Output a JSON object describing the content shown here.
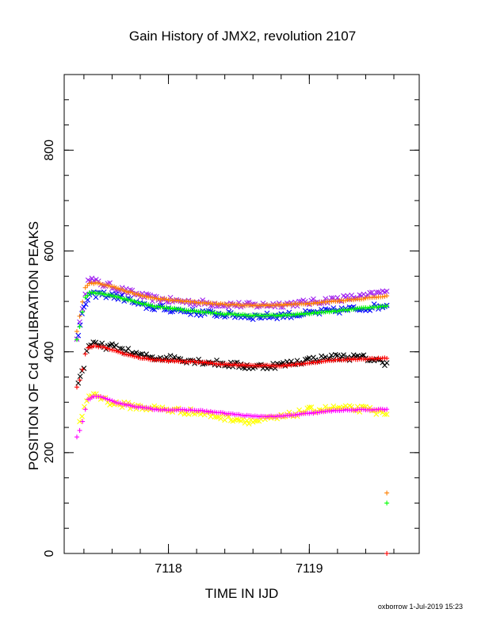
{
  "title": "Gain History of JMX2, revolution 2107",
  "footer": "oxborrow  1-Jul-2019 15:23",
  "colors": {
    "orange": "#ff7f00",
    "purple": "#a020f0",
    "green": "#00ff00",
    "blue": "#0000ff",
    "red": "#ff0000",
    "black": "#000000",
    "magenta": "#ff00ff",
    "yellow": "#ffff00"
  },
  "chart_data": {
    "type": "scatter",
    "title": "Gain History of JMX2, revolution 2107",
    "xlabel": "TIME IN IJD",
    "ylabel": "POSITION OF Cd CALIBRATION PEAKS",
    "xlim": [
      7117.26,
      7119.78
    ],
    "ylim": [
      0,
      950
    ],
    "x_ticks": [
      7118,
      7119
    ],
    "y_ticks": [
      0,
      200,
      400,
      600,
      800
    ],
    "grid": false,
    "legend": "none",
    "marker": "+/x",
    "series": [
      {
        "color": "purple",
        "marker": "x",
        "noise": 6,
        "points": [
          [
            7117.35,
            430
          ],
          [
            7117.37,
            455
          ],
          [
            7117.39,
            480
          ],
          [
            7117.41,
            520
          ],
          [
            7117.43,
            548
          ],
          [
            7117.47,
            540
          ],
          [
            7117.52,
            535
          ],
          [
            7117.6,
            530
          ],
          [
            7117.7,
            520
          ],
          [
            7117.8,
            512
          ],
          [
            7117.9,
            505
          ],
          [
            7118.0,
            502
          ],
          [
            7118.2,
            498
          ],
          [
            7118.4,
            494
          ],
          [
            7118.6,
            492
          ],
          [
            7118.8,
            494
          ],
          [
            7119.0,
            498
          ],
          [
            7119.2,
            505
          ],
          [
            7119.4,
            510
          ],
          [
            7119.55,
            520
          ]
        ]
      },
      {
        "color": "orange",
        "marker": "+",
        "noise": 1,
        "points": [
          [
            7117.35,
            440
          ],
          [
            7117.37,
            470
          ],
          [
            7117.39,
            500
          ],
          [
            7117.41,
            528
          ],
          [
            7117.44,
            536
          ],
          [
            7117.5,
            536
          ],
          [
            7117.6,
            530
          ],
          [
            7117.7,
            520
          ],
          [
            7117.8,
            512
          ],
          [
            7117.9,
            506
          ],
          [
            7118.0,
            503
          ],
          [
            7118.2,
            498
          ],
          [
            7118.4,
            494
          ],
          [
            7118.6,
            492
          ],
          [
            7118.8,
            493
          ],
          [
            7119.0,
            496
          ],
          [
            7119.2,
            501
          ],
          [
            7119.4,
            506
          ],
          [
            7119.55,
            511
          ]
        ]
      },
      {
        "color": "blue",
        "marker": "x",
        "noise": 6,
        "points": [
          [
            7117.36,
            430
          ],
          [
            7117.4,
            490
          ],
          [
            7117.44,
            510
          ],
          [
            7117.5,
            515
          ],
          [
            7117.6,
            512
          ],
          [
            7117.7,
            505
          ],
          [
            7117.8,
            492
          ],
          [
            7117.9,
            488
          ],
          [
            7118.0,
            485
          ],
          [
            7118.2,
            478
          ],
          [
            7118.4,
            474
          ],
          [
            7118.6,
            470
          ],
          [
            7118.8,
            472
          ],
          [
            7119.0,
            476
          ],
          [
            7119.2,
            482
          ],
          [
            7119.4,
            487
          ],
          [
            7119.55,
            492
          ]
        ]
      },
      {
        "color": "green",
        "marker": "+",
        "noise": 1,
        "points": [
          [
            7117.35,
            425
          ],
          [
            7117.37,
            450
          ],
          [
            7117.39,
            480
          ],
          [
            7117.41,
            508
          ],
          [
            7117.44,
            517
          ],
          [
            7117.5,
            517
          ],
          [
            7117.6,
            512
          ],
          [
            7117.7,
            504
          ],
          [
            7117.8,
            496
          ],
          [
            7117.9,
            490
          ],
          [
            7118.0,
            487
          ],
          [
            7118.2,
            480
          ],
          [
            7118.4,
            475
          ],
          [
            7118.6,
            472
          ],
          [
            7118.8,
            472
          ],
          [
            7119.0,
            476
          ],
          [
            7119.2,
            481
          ],
          [
            7119.4,
            487
          ],
          [
            7119.55,
            491
          ]
        ]
      },
      {
        "color": "black",
        "marker": "x",
        "noise": 6,
        "points": [
          [
            7117.36,
            340
          ],
          [
            7117.4,
            370
          ],
          [
            7117.42,
            405
          ],
          [
            7117.45,
            415
          ],
          [
            7117.5,
            412
          ],
          [
            7117.6,
            410
          ],
          [
            7117.7,
            402
          ],
          [
            7117.8,
            392
          ],
          [
            7117.9,
            388
          ],
          [
            7118.0,
            388
          ],
          [
            7118.2,
            382
          ],
          [
            7118.4,
            376
          ],
          [
            7118.6,
            370
          ],
          [
            7118.8,
            374
          ],
          [
            7119.0,
            384
          ],
          [
            7119.2,
            390
          ],
          [
            7119.4,
            388
          ],
          [
            7119.55,
            378
          ]
        ]
      },
      {
        "color": "red",
        "marker": "+",
        "noise": 1,
        "points": [
          [
            7117.35,
            330
          ],
          [
            7117.37,
            345
          ],
          [
            7117.39,
            365
          ],
          [
            7117.41,
            395
          ],
          [
            7117.43,
            408
          ],
          [
            7117.47,
            411
          ],
          [
            7117.52,
            410
          ],
          [
            7117.6,
            404
          ],
          [
            7117.7,
            395
          ],
          [
            7117.8,
            388
          ],
          [
            7117.9,
            384
          ],
          [
            7118.0,
            382
          ],
          [
            7118.2,
            380
          ],
          [
            7118.4,
            375
          ],
          [
            7118.6,
            373
          ],
          [
            7118.8,
            372
          ],
          [
            7119.0,
            378
          ],
          [
            7119.2,
            384
          ],
          [
            7119.4,
            386
          ],
          [
            7119.55,
            387
          ]
        ]
      },
      {
        "color": "yellow",
        "marker": "x",
        "noise": 6,
        "points": [
          [
            7117.37,
            260
          ],
          [
            7117.42,
            305
          ],
          [
            7117.47,
            318
          ],
          [
            7117.52,
            310
          ],
          [
            7117.6,
            298
          ],
          [
            7117.7,
            294
          ],
          [
            7117.8,
            290
          ],
          [
            7117.9,
            288
          ],
          [
            7118.0,
            285
          ],
          [
            7118.2,
            280
          ],
          [
            7118.4,
            270
          ],
          [
            7118.6,
            262
          ],
          [
            7118.8,
            270
          ],
          [
            7119.0,
            284
          ],
          [
            7119.2,
            288
          ],
          [
            7119.4,
            286
          ],
          [
            7119.55,
            276
          ]
        ]
      },
      {
        "color": "magenta",
        "marker": "+",
        "noise": 1,
        "points": [
          [
            7117.35,
            232
          ],
          [
            7117.37,
            245
          ],
          [
            7117.39,
            262
          ],
          [
            7117.41,
            285
          ],
          [
            7117.43,
            305
          ],
          [
            7117.47,
            312
          ],
          [
            7117.52,
            310
          ],
          [
            7117.6,
            302
          ],
          [
            7117.7,
            295
          ],
          [
            7117.8,
            290
          ],
          [
            7117.9,
            286
          ],
          [
            7118.0,
            285
          ],
          [
            7118.2,
            284
          ],
          [
            7118.4,
            278
          ],
          [
            7118.6,
            272
          ],
          [
            7118.8,
            272
          ],
          [
            7119.0,
            278
          ],
          [
            7119.2,
            284
          ],
          [
            7119.4,
            285
          ],
          [
            7119.55,
            286
          ]
        ]
      }
    ],
    "extra_points": [
      {
        "x": 7119.55,
        "y": 120,
        "color": "orange",
        "marker": "+"
      },
      {
        "x": 7119.55,
        "y": 100,
        "color": "green",
        "marker": "+"
      },
      {
        "x": 7119.55,
        "y": 0,
        "color": "red",
        "marker": "+"
      }
    ]
  }
}
